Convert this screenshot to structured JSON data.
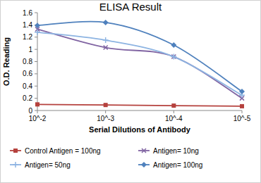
{
  "chart_data": {
    "type": "line",
    "title": "ELISA Result",
    "x_label": "Serial Dilutions  of Antibody",
    "y_label": "O.D. Reading",
    "categories": [
      "10^-2",
      "10^-3",
      "10^-4",
      "10^-5"
    ],
    "series": [
      {
        "name": "Control Antigen = 100ng",
        "color": "#b5413d",
        "marker": "square",
        "values": [
          0.1,
          0.09,
          0.08,
          0.07
        ]
      },
      {
        "name": "Antigen= 10ng",
        "color": "#8064a2",
        "marker": "x",
        "values": [
          1.33,
          1.03,
          0.88,
          0.2
        ]
      },
      {
        "name": "Antigen= 50ng",
        "color": "#8db4e2",
        "marker": "plus",
        "values": [
          1.28,
          1.15,
          0.88,
          0.25
        ]
      },
      {
        "name": "Antigen= 100ng",
        "color": "#4f81bd",
        "marker": "diamond",
        "values": [
          1.39,
          1.44,
          1.07,
          0.31
        ]
      }
    ],
    "ylim": [
      0,
      1.6
    ],
    "yticks": [
      0,
      0.2,
      0.4,
      0.6,
      0.8,
      1,
      1.2,
      1.4,
      1.6
    ],
    "grid": false,
    "legend": "bottom"
  }
}
